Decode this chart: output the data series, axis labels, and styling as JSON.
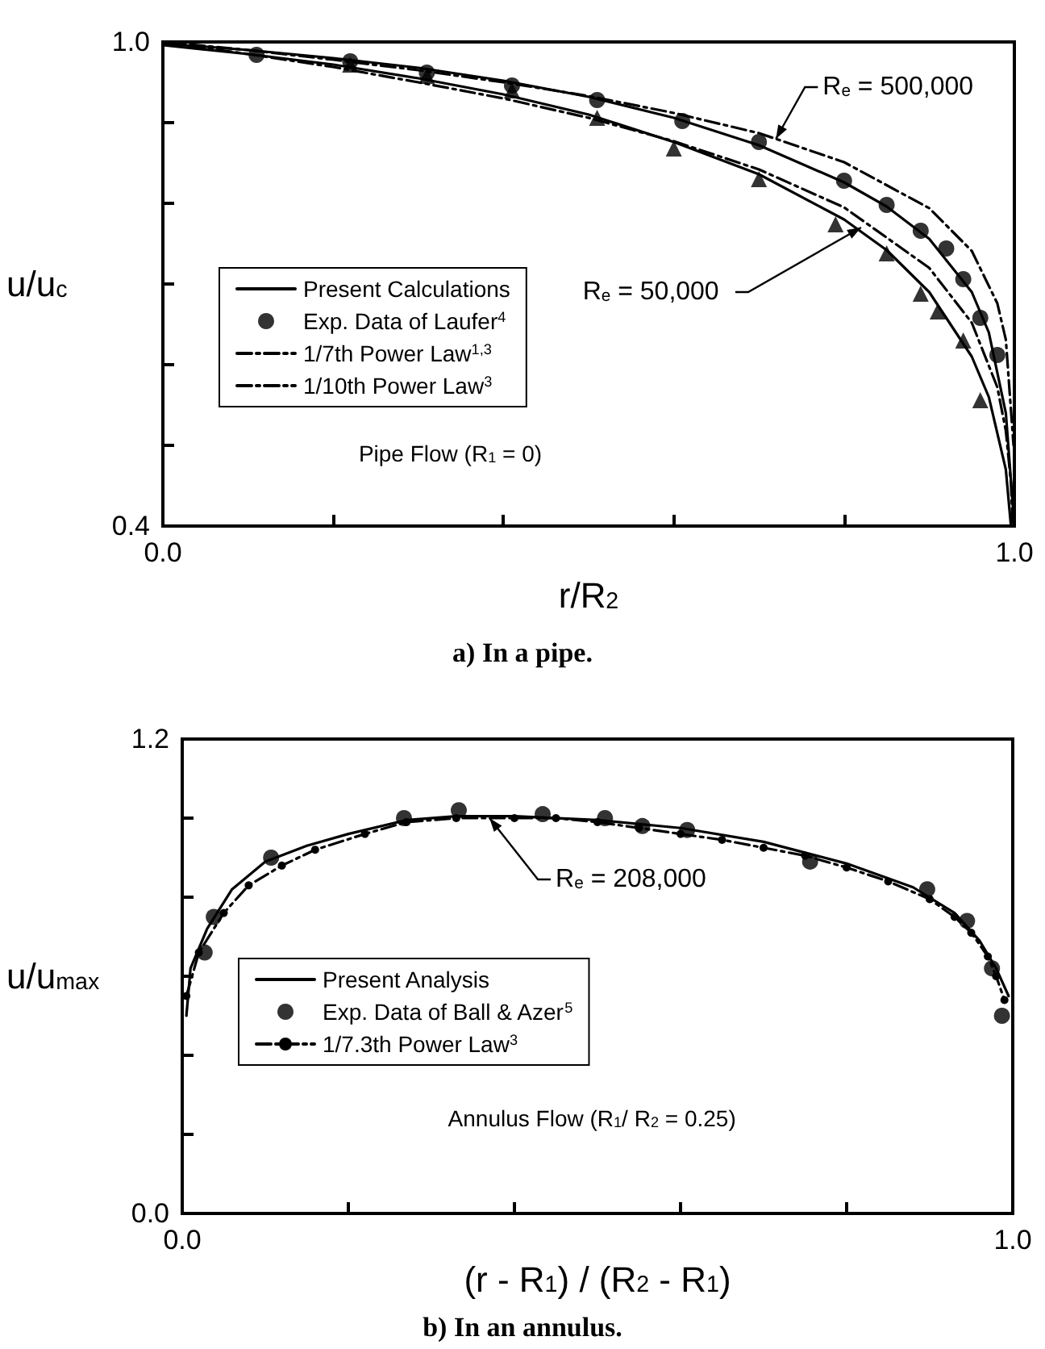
{
  "chart_data": [
    {
      "type": "line",
      "title": "a) In a pipe.",
      "xlabel": "r/R$_{2}$",
      "ylabel": "u/u$_{c}$",
      "xlim": [
        0,
        1
      ],
      "ylim": [
        0.4,
        1
      ],
      "xticks": [
        {
          "value": 0,
          "label": "0.0"
        },
        {
          "value": 0.2,
          "label": null
        },
        {
          "value": 0.4,
          "label": null
        },
        {
          "value": 0.6,
          "label": null
        },
        {
          "value": 0.8,
          "label": null
        },
        {
          "value": 1,
          "label": "1.0"
        }
      ],
      "yticks": [
        {
          "value": 0.4,
          "label": "0.4"
        },
        {
          "value": 0.5,
          "label": null
        },
        {
          "value": 0.6,
          "label": null
        },
        {
          "value": 0.7,
          "label": null
        },
        {
          "value": 0.8,
          "label": null
        },
        {
          "value": 0.9,
          "label": null
        },
        {
          "value": 1,
          "label": "1.0"
        }
      ],
      "legend": "left",
      "annotations": [
        "Pipe Flow (R$_{1}$ = 0)",
        {
          "text": "R$_{e}$ = 500,000",
          "x": 0.72,
          "y": 0.88
        },
        {
          "text": "R$_{e}$ = 50,000",
          "x": 0.82,
          "y": 0.77
        }
      ],
      "series": [
        {
          "name": "Present Calculations",
          "color": "#000000",
          "marker": "none",
          "line_style": "solid",
          "x": [
            0,
            0.1,
            0.2,
            0.3,
            0.4,
            0.5,
            0.6,
            0.7,
            0.8,
            0.85,
            0.9,
            0.95,
            0.97,
            0.99,
            1
          ],
          "values": [
            0.998,
            0.99,
            0.98,
            0.968,
            0.952,
            0.932,
            0.906,
            0.872,
            0.826,
            0.796,
            0.756,
            0.69,
            0.64,
            0.54,
            0.4
          ]
        },
        {
          "color": "#000000",
          "marker": "none",
          "line_style": "solid",
          "x": [
            0,
            0.1,
            0.2,
            0.3,
            0.4,
            0.5,
            0.6,
            0.7,
            0.8,
            0.85,
            0.9,
            0.95,
            0.97,
            0.99,
            0.996
          ],
          "values": [
            0.996,
            0.985,
            0.972,
            0.955,
            0.935,
            0.91,
            0.876,
            0.836,
            0.78,
            0.742,
            0.69,
            0.61,
            0.56,
            0.47,
            0.4
          ]
        },
        {
          "name": "Exp. Data of Laufer$^{4}$",
          "type": "scatter",
          "color": "#000000",
          "marker": "circle",
          "x": [
            0.11,
            0.22,
            0.31,
            0.41,
            0.51,
            0.61,
            0.7,
            0.8,
            0.85,
            0.89,
            0.92,
            0.94,
            0.96,
            0.98
          ],
          "values": [
            0.984,
            0.976,
            0.962,
            0.946,
            0.928,
            0.902,
            0.876,
            0.828,
            0.798,
            0.766,
            0.744,
            0.706,
            0.658,
            0.612
          ]
        },
        {
          "type": "scatter",
          "color": "#000000",
          "marker": "triangle",
          "x": [
            0.22,
            0.31,
            0.41,
            0.51,
            0.6,
            0.7,
            0.79,
            0.85,
            0.89,
            0.91,
            0.94,
            0.96
          ],
          "values": [
            0.972,
            0.958,
            0.94,
            0.906,
            0.868,
            0.83,
            0.774,
            0.738,
            0.688,
            0.666,
            0.63,
            0.556
          ]
        },
        {
          "name": "1/7th Power Law$^{1,3}$",
          "color": "#000000",
          "marker": "none",
          "line_style": "dashed",
          "x": [
            0,
            0.1,
            0.2,
            0.3,
            0.4,
            0.5,
            0.6,
            0.7,
            0.8,
            0.9,
            0.95,
            0.98,
            0.99,
            0.996,
            0.998
          ],
          "values": [
            1,
            0.985,
            0.969,
            0.95,
            0.93,
            0.906,
            0.877,
            0.842,
            0.795,
            0.72,
            0.652,
            0.572,
            0.518,
            0.454,
            0.4
          ]
        },
        {
          "name": "1/10th Power Law$^{3}$",
          "color": "#000000",
          "marker": "none",
          "line_style": "dashed",
          "x": [
            0,
            0.1,
            0.2,
            0.3,
            0.4,
            0.5,
            0.6,
            0.7,
            0.8,
            0.9,
            0.95,
            0.98,
            0.99,
            0.999
          ],
          "values": [
            1,
            0.99,
            0.978,
            0.965,
            0.95,
            0.933,
            0.912,
            0.887,
            0.851,
            0.794,
            0.741,
            0.676,
            0.631,
            0.5
          ]
        }
      ]
    },
    {
      "type": "line",
      "title": "b) In an annulus.",
      "xlabel": "(r - R$_{1}$) / (R$_{2}$ - R$_{1}$)",
      "ylabel": "u/u$_{max}$",
      "xlim": [
        0,
        1
      ],
      "ylim": [
        0,
        1.2
      ],
      "xticks": [
        {
          "value": 0,
          "label": "0.0"
        },
        {
          "value": 0.2,
          "label": null
        },
        {
          "value": 0.4,
          "label": null
        },
        {
          "value": 0.6,
          "label": null
        },
        {
          "value": 0.8,
          "label": null
        },
        {
          "value": 1,
          "label": "1.0"
        }
      ],
      "yticks": [
        {
          "value": 0,
          "label": "0.0"
        },
        {
          "value": 0.2,
          "label": null
        },
        {
          "value": 0.4,
          "label": null
        },
        {
          "value": 0.6,
          "label": null
        },
        {
          "value": 0.8,
          "label": null
        },
        {
          "value": 1,
          "label": null
        },
        {
          "value": 1.2,
          "label": "1.2"
        }
      ],
      "legend": "left",
      "annotations": [
        "Annulus Flow (R$_{1}$/ R$_{2}$ = 0.25)",
        {
          "text": "R$_{e}$ = 208,000",
          "x": 0.37,
          "y": 1.0
        }
      ],
      "series": [
        {
          "name": "Present Analysis",
          "color": "#000000",
          "marker": "none",
          "line_style": "solid",
          "x": [
            0.005,
            0.01,
            0.03,
            0.06,
            0.1,
            0.15,
            0.2,
            0.27,
            0.33,
            0.4,
            0.5,
            0.6,
            0.7,
            0.8,
            0.88,
            0.93,
            0.96,
            0.98,
            0.995
          ],
          "values": [
            0.5,
            0.62,
            0.72,
            0.82,
            0.89,
            0.93,
            0.96,
            0.995,
            1.005,
            1.005,
            0.995,
            0.975,
            0.94,
            0.885,
            0.825,
            0.76,
            0.69,
            0.62,
            0.55
          ]
        },
        {
          "name": "Exp. Data of Ball & Azer$^{5}$",
          "type": "scatter",
          "color": "#000000",
          "marker": "circle",
          "x": [
            0.027,
            0.038,
            0.107,
            0.267,
            0.333,
            0.434,
            0.509,
            0.554,
            0.608,
            0.756,
            0.897,
            0.945,
            0.975,
            0.987
          ],
          "values": [
            0.66,
            0.75,
            0.9,
            1.0,
            1.02,
            1.01,
            1.0,
            0.98,
            0.97,
            0.89,
            0.82,
            0.74,
            0.62,
            0.5
          ]
        },
        {
          "name": "1/7.3th Power Law$^{3}$",
          "color": "#000000",
          "marker": "circle",
          "line_style": "dashed",
          "x": [
            0.005,
            0.02,
            0.05,
            0.08,
            0.12,
            0.16,
            0.22,
            0.27,
            0.33,
            0.4,
            0.45,
            0.5,
            0.55,
            0.6,
            0.65,
            0.7,
            0.75,
            0.8,
            0.85,
            0.9,
            0.93,
            0.95,
            0.97,
            0.98,
            0.99
          ],
          "values": [
            0.55,
            0.66,
            0.76,
            0.83,
            0.88,
            0.92,
            0.96,
            0.99,
            1.0,
            1.0,
            1.0,
            0.99,
            0.975,
            0.96,
            0.945,
            0.925,
            0.905,
            0.875,
            0.84,
            0.795,
            0.75,
            0.71,
            0.65,
            0.6,
            0.54
          ]
        }
      ]
    }
  ]
}
